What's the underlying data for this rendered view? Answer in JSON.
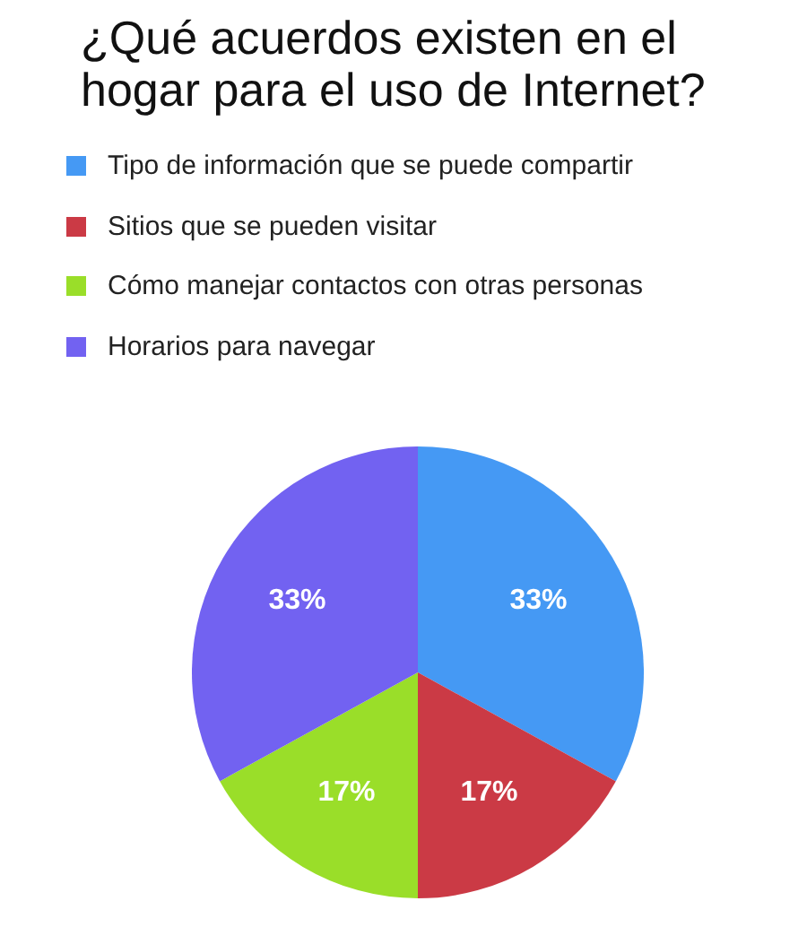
{
  "chart_data": {
    "type": "pie",
    "title": "¿Qué acuerdos existen en el hogar para el uso de Internet?",
    "categories": [
      "Tipo de información que se puede compartir",
      "Sitios que se pueden visitar",
      "Cómo manejar contactos con otras personas",
      "Horarios para navegar"
    ],
    "values": [
      33,
      17,
      17,
      33
    ],
    "colors": [
      "#4599f4",
      "#cb3a45",
      "#9ade29",
      "#7262f1"
    ],
    "value_labels": [
      "33%",
      "17%",
      "17%",
      "33%"
    ],
    "legend": "top left"
  }
}
